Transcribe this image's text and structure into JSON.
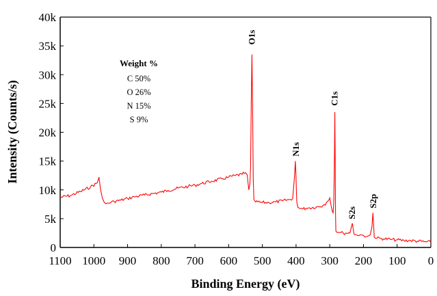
{
  "chart_data": {
    "type": "line",
    "xlabel": "Binding Energy (eV)",
    "ylabel": "Intensity (Counts/s)",
    "xlim": [
      1100,
      0
    ],
    "ylim": [
      0,
      40000
    ],
    "x_reversed": true,
    "x_ticks": [
      {
        "value": 1100,
        "label": "1100"
      },
      {
        "value": 1000,
        "label": "1000"
      },
      {
        "value": 900,
        "label": "900"
      },
      {
        "value": 800,
        "label": "800"
      },
      {
        "value": 700,
        "label": "700"
      },
      {
        "value": 600,
        "label": "600"
      },
      {
        "value": 500,
        "label": "500"
      },
      {
        "value": 400,
        "label": "400"
      },
      {
        "value": 300,
        "label": "300"
      },
      {
        "value": 200,
        "label": "200"
      },
      {
        "value": 100,
        "label": "100"
      },
      {
        "value": 0,
        "label": "0"
      }
    ],
    "y_ticks": [
      {
        "value": 0,
        "label": "0"
      },
      {
        "value": 5000,
        "label": "5k"
      },
      {
        "value": 10000,
        "label": "10k"
      },
      {
        "value": 15000,
        "label": "15k"
      },
      {
        "value": 20000,
        "label": "20k"
      },
      {
        "value": 25000,
        "label": "25k"
      },
      {
        "value": 30000,
        "label": "30k"
      },
      {
        "value": 35000,
        "label": "35k"
      },
      {
        "value": 40000,
        "label": "40k"
      }
    ],
    "grid": false,
    "series_color": "#ff0000",
    "series": [
      {
        "x": [
          1100,
          1070,
          1040,
          1010,
          990,
          985,
          980,
          975,
          970,
          965,
          960,
          950,
          940,
          920,
          900,
          880,
          850,
          820,
          800,
          780,
          750,
          720,
          700,
          680,
          650,
          620,
          600,
          580,
          560,
          550,
          545,
          542,
          540,
          537,
          535,
          533,
          531,
          529,
          527,
          525,
          520,
          500,
          480,
          460,
          440,
          420,
          410,
          405,
          402,
          400,
          398,
          395,
          390,
          380,
          370,
          360,
          340,
          320,
          310,
          300,
          296,
          292,
          290,
          288,
          286,
          285,
          284,
          283,
          282,
          280,
          278,
          276,
          270,
          260,
          250,
          240,
          236,
          233,
          230,
          228,
          225,
          220,
          210,
          200,
          190,
          185,
          180,
          175,
          172,
          170,
          168,
          165,
          160,
          150,
          140,
          120,
          100,
          80,
          60,
          40,
          20,
          0
        ],
        "values": [
          8700,
          9000,
          9700,
          10500,
          11200,
          12200,
          10000,
          8600,
          7900,
          7600,
          7700,
          7800,
          8000,
          8200,
          8500,
          8800,
          9100,
          9400,
          9600,
          9900,
          10300,
          10600,
          10800,
          11100,
          11500,
          11900,
          12200,
          12500,
          12700,
          13000,
          12600,
          11000,
          10000,
          11000,
          14000,
          25000,
          33500,
          25000,
          12000,
          8300,
          7900,
          7800,
          7800,
          7900,
          8100,
          8300,
          8500,
          12000,
          15000,
          12000,
          8000,
          7000,
          6800,
          6700,
          6800,
          6900,
          7000,
          7300,
          7800,
          8600,
          7200,
          6200,
          6000,
          8000,
          16000,
          23500,
          16000,
          6000,
          2900,
          2700,
          2600,
          2600,
          2600,
          2500,
          2500,
          2500,
          3500,
          4200,
          3000,
          2300,
          2200,
          2200,
          2200,
          2100,
          1900,
          2000,
          2200,
          3500,
          6000,
          4200,
          1800,
          1600,
          1600,
          1600,
          1500,
          1400,
          1300,
          1200,
          1200,
          1100,
          1000,
          900
        ]
      }
    ],
    "annotations": [
      {
        "label": "O1s",
        "x": 531,
        "y": 35200
      },
      {
        "label": "N1s",
        "x": 400,
        "y": 15800
      },
      {
        "label": "C1s",
        "x": 285,
        "y": 24600
      },
      {
        "label": "S2s",
        "x": 233,
        "y": 4900
      },
      {
        "label": "S2p",
        "x": 170,
        "y": 6800
      }
    ],
    "legend": {
      "title": "Weight %",
      "lines": [
        "C 50%",
        "O 26%",
        "N 15%",
        "S 9%"
      ],
      "placement": "top-left"
    }
  }
}
